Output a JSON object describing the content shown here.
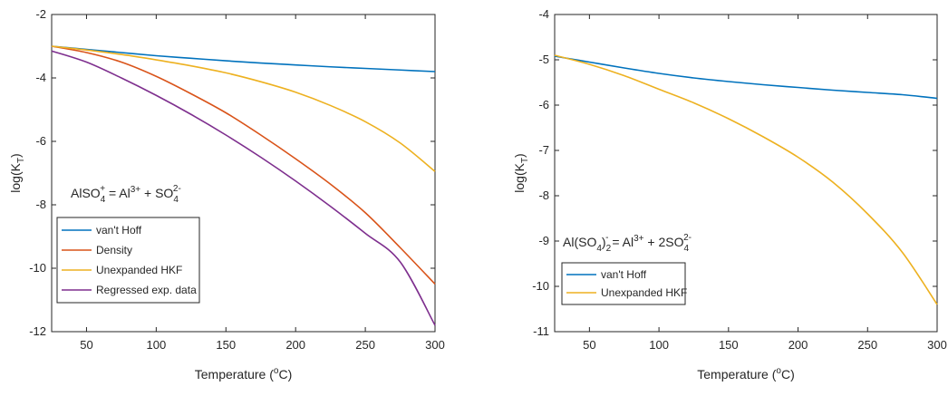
{
  "chart_data": [
    {
      "type": "line",
      "xlabel": "Temperature (",
      "xlabel_sup": "o",
      "xlabel_tail": "C)",
      "ylabel": "log(K",
      "ylabel_sub": "T",
      "ylabel_tail": ")",
      "xlim": [
        25,
        300
      ],
      "ylim": [
        -12,
        -2
      ],
      "xticks": [
        50,
        100,
        150,
        200,
        250,
        300
      ],
      "yticks": [
        -12,
        -10,
        -8,
        -6,
        -4,
        -2
      ],
      "grid": false,
      "legend_position": "bottom-left",
      "annotation": {
        "parts": [
          {
            "t": "AlSO",
            "s": ""
          },
          {
            "t": "4",
            "s": "sub",
            "sup": "+"
          },
          {
            "t": " = Al",
            "s": ""
          },
          {
            "t": "3+",
            "s": "sup"
          },
          {
            "t": " + SO",
            "s": ""
          },
          {
            "t": "4",
            "s": "sub",
            "sup": "2-"
          }
        ],
        "position": "middle-left"
      },
      "x": [
        25,
        50,
        75,
        100,
        125,
        150,
        175,
        200,
        225,
        250,
        275,
        300
      ],
      "series": [
        {
          "name": "van't Hoff",
          "color": "#0072BD",
          "values": [
            -3.0,
            -3.1,
            -3.2,
            -3.3,
            -3.38,
            -3.46,
            -3.53,
            -3.59,
            -3.65,
            -3.7,
            -3.75,
            -3.8
          ]
        },
        {
          "name": "Density",
          "color": "#D95319",
          "values": [
            -3.0,
            -3.2,
            -3.5,
            -3.95,
            -4.5,
            -5.1,
            -5.8,
            -6.55,
            -7.35,
            -8.25,
            -9.35,
            -10.5
          ]
        },
        {
          "name": "Unexpanded HKF",
          "color": "#EDB120",
          "values": [
            -3.0,
            -3.12,
            -3.26,
            -3.43,
            -3.62,
            -3.84,
            -4.12,
            -4.45,
            -4.87,
            -5.38,
            -6.05,
            -6.95
          ]
        },
        {
          "name": "Regressed exp. data",
          "color": "#7E2F8E",
          "values": [
            -3.15,
            -3.5,
            -4.0,
            -4.55,
            -5.15,
            -5.8,
            -6.5,
            -7.25,
            -8.05,
            -8.9,
            -9.8,
            -11.8
          ]
        }
      ]
    },
    {
      "type": "line",
      "xlabel": "Temperature (",
      "xlabel_sup": "o",
      "xlabel_tail": "C)",
      "ylabel": "log(K",
      "ylabel_sub": "T",
      "ylabel_tail": ")",
      "xlim": [
        25,
        300
      ],
      "ylim": [
        -11,
        -4
      ],
      "xticks": [
        50,
        100,
        150,
        200,
        250,
        300
      ],
      "yticks": [
        -11,
        -10,
        -9,
        -8,
        -7,
        -6,
        -5,
        -4
      ],
      "grid": false,
      "legend_position": "bottom-left",
      "annotation": {
        "parts": [
          {
            "t": "Al(SO",
            "s": ""
          },
          {
            "t": "4",
            "s": "sub"
          },
          {
            "t": ")",
            "s": ""
          },
          {
            "t": "2",
            "s": "sub",
            "sup": "-"
          },
          {
            "t": " = Al",
            "s": ""
          },
          {
            "t": "3+",
            "s": "sup"
          },
          {
            "t": " + 2SO",
            "s": ""
          },
          {
            "t": "4",
            "s": "sub",
            "sup": "2-"
          }
        ],
        "position": "middle-left"
      },
      "x": [
        25,
        50,
        75,
        100,
        125,
        150,
        175,
        200,
        225,
        250,
        275,
        300
      ],
      "series": [
        {
          "name": "van't Hoff",
          "color": "#0072BD",
          "values": [
            -4.92,
            -5.05,
            -5.18,
            -5.3,
            -5.4,
            -5.48,
            -5.55,
            -5.61,
            -5.67,
            -5.72,
            -5.77,
            -5.85
          ]
        },
        {
          "name": "Unexpanded HKF",
          "color": "#EDB120",
          "values": [
            -4.9,
            -5.1,
            -5.35,
            -5.65,
            -5.95,
            -6.3,
            -6.7,
            -7.15,
            -7.7,
            -8.4,
            -9.25,
            -10.4
          ]
        }
      ]
    }
  ]
}
